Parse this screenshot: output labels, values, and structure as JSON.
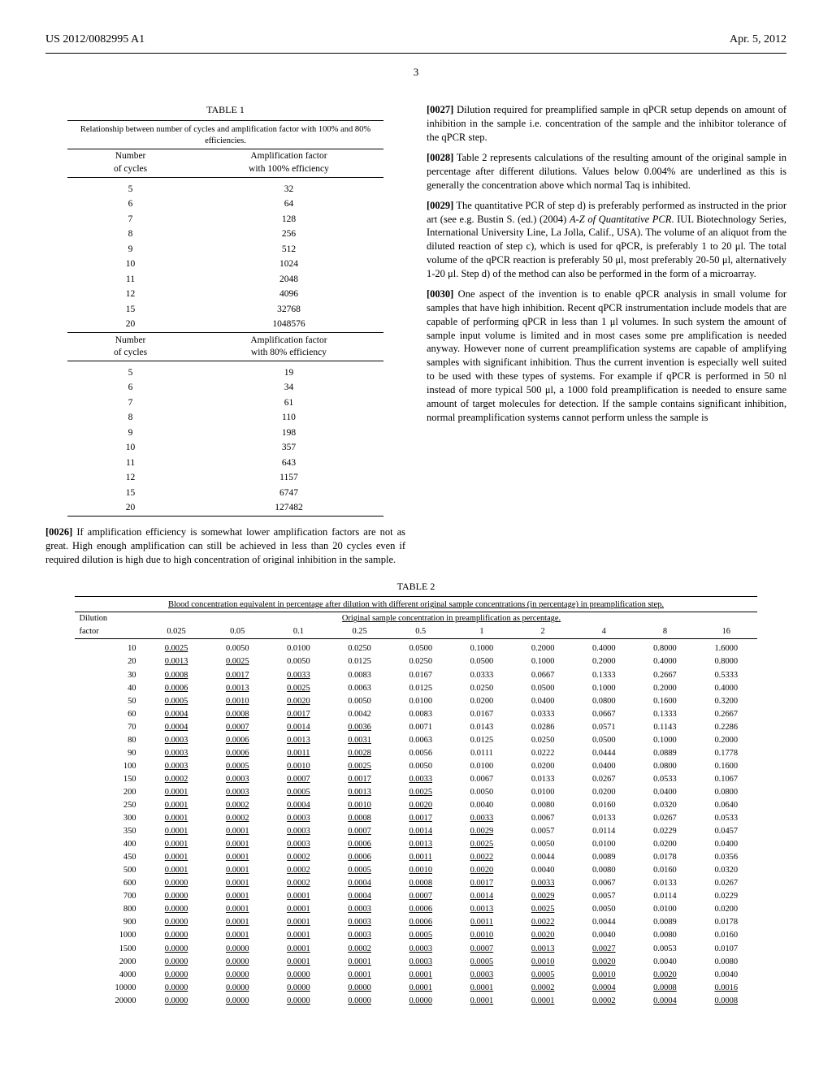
{
  "header": {
    "left": "US 2012/0082995 A1",
    "right": "Apr. 5, 2012"
  },
  "page_number": "3",
  "table1": {
    "label": "TABLE 1",
    "caption": "Relationship between number of cycles and amplification factor with 100% and 80% efficiencies.",
    "colhdr_left": "Number\nof cycles",
    "colhdr_right_100": "Amplification factor\nwith 100% efficiency",
    "colhdr_right_80": "Amplification factor\nwith 80% efficiency",
    "cycles": [
      "5",
      "6",
      "7",
      "8",
      "9",
      "10",
      "11",
      "12",
      "15",
      "20"
    ],
    "eff100": [
      "32",
      "64",
      "128",
      "256",
      "512",
      "1024",
      "2048",
      "4096",
      "32768",
      "1048576"
    ],
    "eff80": [
      "19",
      "34",
      "61",
      "110",
      "198",
      "357",
      "643",
      "1157",
      "6747",
      "127482"
    ]
  },
  "para26": {
    "num": "[0026]",
    "text": " If amplification efficiency is somewhat lower amplification factors are not as great. High enough amplification can still be achieved in less than 20 cycles even if required dilution is high due to high concentration of original inhibition in the sample."
  },
  "para27": {
    "num": "[0027]",
    "text": " Dilution required for preamplified sample in qPCR setup depends on amount of inhibition in the sample i.e. concentration of the sample and the inhibitor tolerance of the qPCR step."
  },
  "para28": {
    "num": "[0028]",
    "text": " Table 2 represents calculations of the resulting amount of the original sample in percentage after different dilutions. Values below 0.004% are underlined as this is generally the concentration above which normal Taq is inhibited."
  },
  "para29": {
    "num": "[0029]",
    "pre": " The quantitative PCR of step d) is preferably performed as instructed in the prior art (see e.g. Bustin S. (ed.) (2004) ",
    "ital": "A-Z of Quantitative PCR",
    "post": ". IUL Biotechnology Series, International University Line, La Jolla, Calif., USA). The volume of an aliquot from the diluted reaction of step c), which is used for qPCR, is preferably 1 to 20 μl. The total volume of the qPCR reaction is preferably 50 μl, most preferably 20-50 μl, alternatively 1-20 μl. Step d) of the method can also be performed in the form of a microarray."
  },
  "para30": {
    "num": "[0030]",
    "text": " One aspect of the invention is to enable qPCR analysis in small volume for samples that have high inhibition. Recent qPCR instrumentation include models that are capable of performing qPCR in less than 1 μl volumes. In such system the amount of sample input volume is limited and in most cases some pre amplification is needed anyway. However none of current preamplification systems are capable of amplifying samples with significant inhibition. Thus the current invention is especially well suited to be used with these types of systems. For example if qPCR is performed in 50 nl instead of more typical 500 μl, a 1000 fold preamplification is needed to ensure same amount of target molecules for detection. If the sample contains significant inhibition, normal preamplification systems cannot perform unless the sample is"
  },
  "table2": {
    "label": "TABLE 2",
    "caption": "Blood concentration equivalent in percentage after dilution with different original sample concentrations (in percentage) in preamplification step.",
    "span_header": "Original sample concentration in preamplification as percentage.",
    "dilution_hdr": "Dilution",
    "factor_hdr": "factor",
    "concs": [
      "0.025",
      "0.05",
      "0.1",
      "0.25",
      "0.5",
      "1",
      "2",
      "4",
      "8",
      "16"
    ],
    "factors": [
      "10",
      "20",
      "30",
      "40",
      "50",
      "60",
      "70",
      "80",
      "90",
      "100",
      "150",
      "200",
      "250",
      "300",
      "350",
      "400",
      "450",
      "500",
      "600",
      "700",
      "800",
      "900",
      "1000",
      "1500",
      "2000",
      "4000",
      "10000",
      "20000"
    ],
    "underline_threshold": 0.004,
    "cells": [
      [
        "0.0025",
        "0.0050",
        "0.0100",
        "0.0250",
        "0.0500",
        "0.1000",
        "0.2000",
        "0.4000",
        "0.8000",
        "1.6000"
      ],
      [
        "0.0013",
        "0.0025",
        "0.0050",
        "0.0125",
        "0.0250",
        "0.0500",
        "0.1000",
        "0.2000",
        "0.4000",
        "0.8000"
      ],
      [
        "0.0008",
        "0.0017",
        "0.0033",
        "0.0083",
        "0.0167",
        "0.0333",
        "0.0667",
        "0.1333",
        "0.2667",
        "0.5333"
      ],
      [
        "0.0006",
        "0.0013",
        "0.0025",
        "0.0063",
        "0.0125",
        "0.0250",
        "0.0500",
        "0.1000",
        "0.2000",
        "0.4000"
      ],
      [
        "0.0005",
        "0.0010",
        "0.0020",
        "0.0050",
        "0.0100",
        "0.0200",
        "0.0400",
        "0.0800",
        "0.1600",
        "0.3200"
      ],
      [
        "0.0004",
        "0.0008",
        "0.0017",
        "0.0042",
        "0.0083",
        "0.0167",
        "0.0333",
        "0.0667",
        "0.1333",
        "0.2667"
      ],
      [
        "0.0004",
        "0.0007",
        "0.0014",
        "0.0036",
        "0.0071",
        "0.0143",
        "0.0286",
        "0.0571",
        "0.1143",
        "0.2286"
      ],
      [
        "0.0003",
        "0.0006",
        "0.0013",
        "0.0031",
        "0.0063",
        "0.0125",
        "0.0250",
        "0.0500",
        "0.1000",
        "0.2000"
      ],
      [
        "0.0003",
        "0.0006",
        "0.0011",
        "0.0028",
        "0.0056",
        "0.0111",
        "0.0222",
        "0.0444",
        "0.0889",
        "0.1778"
      ],
      [
        "0.0003",
        "0.0005",
        "0.0010",
        "0.0025",
        "0.0050",
        "0.0100",
        "0.0200",
        "0.0400",
        "0.0800",
        "0.1600"
      ],
      [
        "0.0002",
        "0.0003",
        "0.0007",
        "0.0017",
        "0.0033",
        "0.0067",
        "0.0133",
        "0.0267",
        "0.0533",
        "0.1067"
      ],
      [
        "0.0001",
        "0.0003",
        "0.0005",
        "0.0013",
        "0.0025",
        "0.0050",
        "0.0100",
        "0.0200",
        "0.0400",
        "0.0800"
      ],
      [
        "0.0001",
        "0.0002",
        "0.0004",
        "0.0010",
        "0.0020",
        "0.0040",
        "0.0080",
        "0.0160",
        "0.0320",
        "0.0640"
      ],
      [
        "0.0001",
        "0.0002",
        "0.0003",
        "0.0008",
        "0.0017",
        "0.0033",
        "0.0067",
        "0.0133",
        "0.0267",
        "0.0533"
      ],
      [
        "0.0001",
        "0.0001",
        "0.0003",
        "0.0007",
        "0.0014",
        "0.0029",
        "0.0057",
        "0.0114",
        "0.0229",
        "0.0457"
      ],
      [
        "0.0001",
        "0.0001",
        "0.0003",
        "0.0006",
        "0.0013",
        "0.0025",
        "0.0050",
        "0.0100",
        "0.0200",
        "0.0400"
      ],
      [
        "0.0001",
        "0.0001",
        "0.0002",
        "0.0006",
        "0.0011",
        "0.0022",
        "0.0044",
        "0.0089",
        "0.0178",
        "0.0356"
      ],
      [
        "0.0001",
        "0.0001",
        "0.0002",
        "0.0005",
        "0.0010",
        "0.0020",
        "0.0040",
        "0.0080",
        "0.0160",
        "0.0320"
      ],
      [
        "0.0000",
        "0.0001",
        "0.0002",
        "0.0004",
        "0.0008",
        "0.0017",
        "0.0033",
        "0.0067",
        "0.0133",
        "0.0267"
      ],
      [
        "0.0000",
        "0.0001",
        "0.0001",
        "0.0004",
        "0.0007",
        "0.0014",
        "0.0029",
        "0.0057",
        "0.0114",
        "0.0229"
      ],
      [
        "0.0000",
        "0.0001",
        "0.0001",
        "0.0003",
        "0.0006",
        "0.0013",
        "0.0025",
        "0.0050",
        "0.0100",
        "0.0200"
      ],
      [
        "0.0000",
        "0.0001",
        "0.0001",
        "0.0003",
        "0.0006",
        "0.0011",
        "0.0022",
        "0.0044",
        "0.0089",
        "0.0178"
      ],
      [
        "0.0000",
        "0.0001",
        "0.0001",
        "0.0003",
        "0.0005",
        "0.0010",
        "0.0020",
        "0.0040",
        "0.0080",
        "0.0160"
      ],
      [
        "0.0000",
        "0.0000",
        "0.0001",
        "0.0002",
        "0.0003",
        "0.0007",
        "0.0013",
        "0.0027",
        "0.0053",
        "0.0107"
      ],
      [
        "0.0000",
        "0.0000",
        "0.0001",
        "0.0001",
        "0.0003",
        "0.0005",
        "0.0010",
        "0.0020",
        "0.0040",
        "0.0080"
      ],
      [
        "0.0000",
        "0.0000",
        "0.0000",
        "0.0001",
        "0.0001",
        "0.0003",
        "0.0005",
        "0.0010",
        "0.0020",
        "0.0040"
      ],
      [
        "0.0000",
        "0.0000",
        "0.0000",
        "0.0000",
        "0.0001",
        "0.0001",
        "0.0002",
        "0.0004",
        "0.0008",
        "0.0016"
      ],
      [
        "0.0000",
        "0.0000",
        "0.0000",
        "0.0000",
        "0.0000",
        "0.0001",
        "0.0001",
        "0.0002",
        "0.0004",
        "0.0008"
      ]
    ]
  }
}
